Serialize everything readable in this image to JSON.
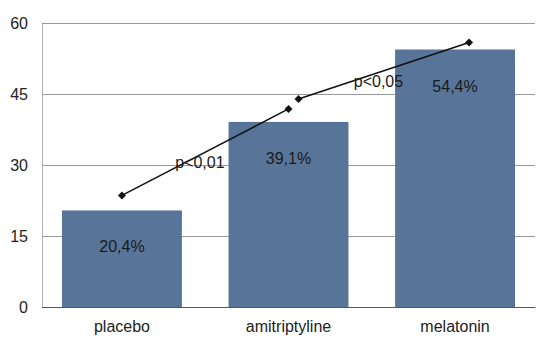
{
  "chart_data": {
    "type": "bar",
    "categories": [
      "placebo",
      "amitriptyline",
      "melatonin"
    ],
    "values": [
      20.4,
      39.1,
      54.4
    ],
    "value_labels": [
      "20,4%",
      "39,1%",
      "54,4%"
    ],
    "data_labels": true,
    "color": "#587599",
    "ylim": [
      0,
      60
    ],
    "yticks": [
      0,
      15,
      30,
      45,
      60
    ],
    "grid": true,
    "annotations": [
      "p<0,01",
      "p<0,05"
    ]
  }
}
